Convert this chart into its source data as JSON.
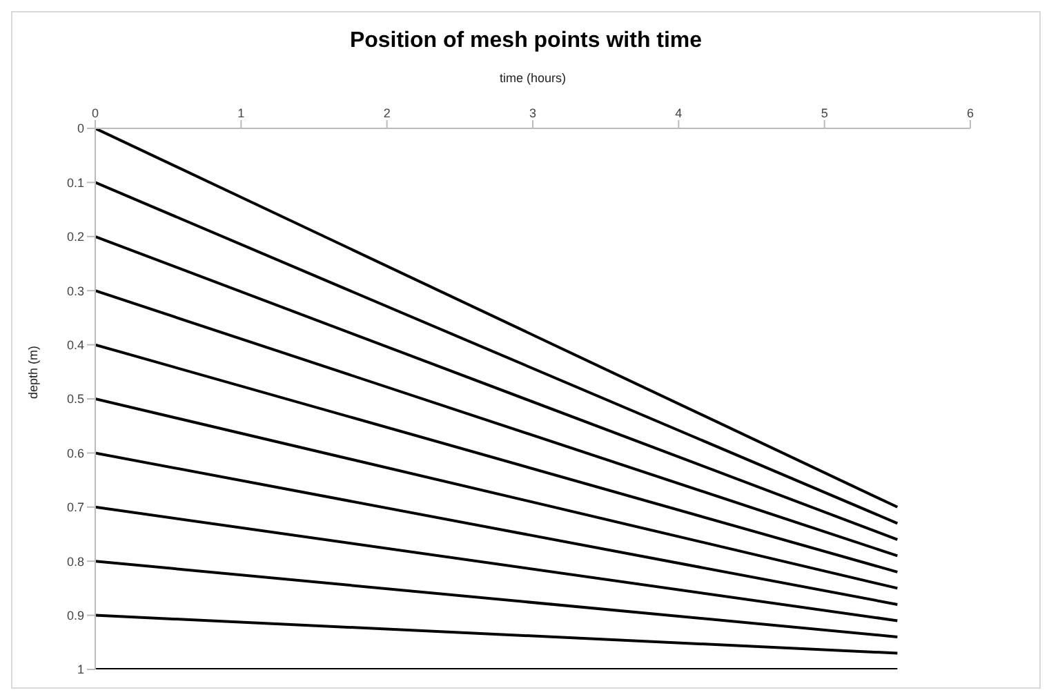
{
  "chart_data": {
    "type": "line",
    "title": "Position of mesh points with time",
    "xlabel": "time (hours)",
    "ylabel": "depth (m)",
    "xlim": [
      0,
      6
    ],
    "xticks": [
      0,
      1,
      2,
      3,
      4,
      5,
      6
    ],
    "ylim": [
      1,
      0
    ],
    "yticks": [
      0,
      0.1,
      0.2,
      0.3,
      0.4,
      0.5,
      0.6,
      0.7,
      0.8,
      0.9,
      1
    ],
    "grid": false,
    "legend": false,
    "marker": "none",
    "line_style": "solid",
    "x": [
      0,
      5.5
    ],
    "series": [
      {
        "color": "#000000",
        "values": [
          0,
          0.7
        ]
      },
      {
        "color": "#000000",
        "values": [
          0.1,
          0.73
        ]
      },
      {
        "color": "#000000",
        "values": [
          0.2,
          0.76
        ]
      },
      {
        "color": "#000000",
        "values": [
          0.3,
          0.79
        ]
      },
      {
        "color": "#000000",
        "values": [
          0.4,
          0.82
        ]
      },
      {
        "color": "#000000",
        "values": [
          0.5,
          0.85
        ]
      },
      {
        "color": "#000000",
        "values": [
          0.6,
          0.88
        ]
      },
      {
        "color": "#000000",
        "values": [
          0.7,
          0.91
        ]
      },
      {
        "color": "#000000",
        "values": [
          0.8,
          0.94
        ]
      },
      {
        "color": "#000000",
        "values": [
          0.9,
          0.97
        ]
      },
      {
        "color": "#000000",
        "values": [
          1,
          1
        ]
      }
    ]
  }
}
